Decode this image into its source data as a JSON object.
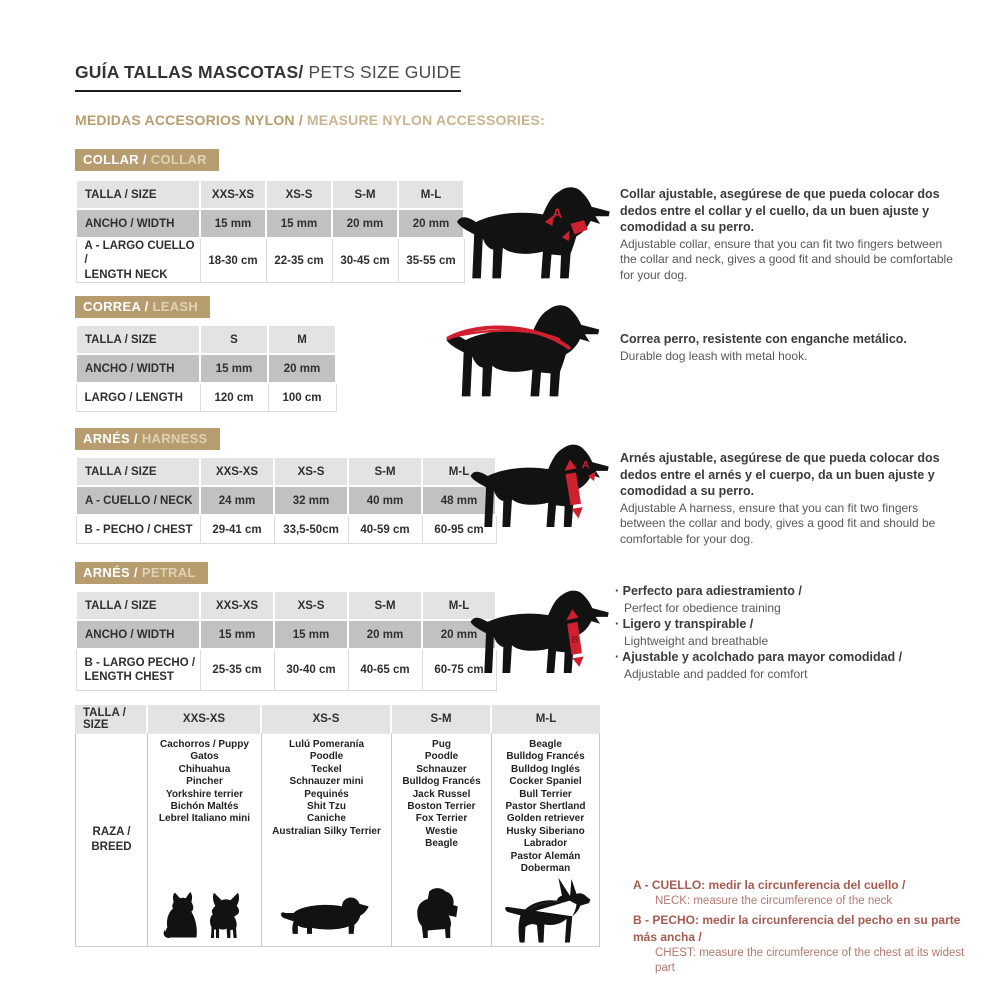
{
  "page": {
    "title_bold": "GUÍA TALLAS MASCOTAS/",
    "title_light": "PETS SIZE GUIDE",
    "subtitle_bold": "MEDIDAS ACCESORIOS NYLON /",
    "subtitle_light": "MEASURE NYLON ACCESSORIES:"
  },
  "collar": {
    "badge_bold": "COLLAR /",
    "badge_light": "COLLAR",
    "header": [
      "TALLA / SIZE",
      "XXS-XS",
      "XS-S",
      "S-M",
      "M-L"
    ],
    "width_label": "ANCHO / WIDTH",
    "width_values": [
      "15 mm",
      "15 mm",
      "20 mm",
      "20 mm"
    ],
    "neck_label": "A - LARGO CUELLO /\nLENGTH NECK",
    "neck_values": [
      "18-30 cm",
      "22-35 cm",
      "30-45 cm",
      "35-55 cm"
    ],
    "marker": "A",
    "desc_es": "Collar ajustable, asegúrese de que pueda colocar dos dedos entre el collar y el cuello, da un buen ajuste y comodidad a su perro.",
    "desc_en": "Adjustable collar, ensure that you can fit two fingers between the collar and neck, gives a good fit and should be comfortable for your dog."
  },
  "leash": {
    "badge_bold": "CORREA /",
    "badge_light": "LEASH",
    "header": [
      "TALLA / SIZE",
      "S",
      "M"
    ],
    "width_label": "ANCHO / WIDTH",
    "width_values": [
      "15 mm",
      "20 mm"
    ],
    "length_label": "LARGO / LENGTH",
    "length_values": [
      "120 cm",
      "100 cm"
    ],
    "desc_es": "Correa perro, resistente con enganche metálico.",
    "desc_en": "Durable dog leash with metal hook."
  },
  "harness": {
    "badge_bold": "ARNÉS /",
    "badge_light": "HARNESS",
    "header": [
      "TALLA / SIZE",
      "XXS-XS",
      "XS-S",
      "S-M",
      "M-L"
    ],
    "neck_label": "A - CUELLO / NECK",
    "neck_values": [
      "24 mm",
      "32 mm",
      "40 mm",
      "48 mm"
    ],
    "chest_label": "B - PECHO / CHEST",
    "chest_values": [
      "29-41 cm",
      "33,5-50cm",
      "40-59 cm",
      "60-95 cm"
    ],
    "marker": "A",
    "desc_es": "Arnés ajustable, asegúrese de que pueda colocar dos dedos entre el arnés y el cuerpo, da un buen ajuste y comodidad a su perro.",
    "desc_en": "Adjustable A harness, ensure that you can fit two fingers between the collar and body, gives a good fit and should be comfortable for your dog."
  },
  "petral": {
    "badge_bold": "ARNÉS /",
    "badge_light": "PETRAL",
    "header": [
      "TALLA / SIZE",
      "XXS-XS",
      "XS-S",
      "S-M",
      "M-L"
    ],
    "width_label": "ANCHO / WIDTH",
    "width_values": [
      "15 mm",
      "15 mm",
      "20 mm",
      "20 mm"
    ],
    "chest_label": "B - LARGO PECHO /\nLENGTH CHEST",
    "chest_values": [
      "25-35 cm",
      "30-40 cm",
      "40-65 cm",
      "60-75 cm"
    ],
    "marker": "B",
    "bullets": [
      {
        "es": "Perfecto para adiestramiento /",
        "en": "Perfect for obedience training"
      },
      {
        "es": "Ligero y transpirable /",
        "en": "Lightweight and breathable"
      },
      {
        "es": "Ajustable y acolchado para mayor comodidad /",
        "en": "Adjustable and padded for comfort"
      }
    ]
  },
  "breeds": {
    "header": [
      "TALLA /  SIZE",
      "XXS-XS",
      "XS-S",
      "S-M",
      "M-L"
    ],
    "row_label": "RAZA /\nBREED",
    "lists": {
      "xxs_xs": [
        "Cachorros / Puppy",
        "Gatos",
        "Chihuahua",
        "Pincher",
        "Yorkshire terrier",
        "Bichón Maltés",
        "Lebrel Italiano mini"
      ],
      "xs_s": [
        "Lulú Pomeranía",
        "Poodle",
        "Teckel",
        "Schnauzer mini",
        "Pequinés",
        "Shit Tzu",
        "Caniche",
        "Australian Silky Terrier"
      ],
      "s_m": [
        "Pug",
        "Poodle",
        "Schnauzer",
        "Bulldog Francés",
        "Jack Russel",
        "Boston Terrier",
        "Fox Terrier",
        "Westie",
        "Beagle"
      ],
      "m_l": [
        "Beagle",
        "Bulldog Francés",
        "Bulldog Inglés",
        "Cocker Spaniel",
        "Bull Terrier",
        "Pastor Shertland",
        "Golden retriever",
        "Husky Siberiano",
        "Labrador",
        "Pastor Alemán",
        "Doberman"
      ]
    }
  },
  "notes": [
    {
      "es": "A - CUELLO: medir la circunferencia del cuello /",
      "en": "NECK: measure the circumference of the neck"
    },
    {
      "es": "B - PECHO: medir la circunferencia del pecho en su parte más ancha /",
      "en": "CHEST: measure the circumference of the chest at its widest part"
    }
  ],
  "colors": {
    "tan_accent": "#b69c6e",
    "red_accent": "#cf2030",
    "note_red": "#a65b51",
    "row_light": "#e3e3e3",
    "row_mid": "#c1c1c1"
  },
  "icons": {
    "sections": [
      "dog-collar-icon",
      "dog-leash-icon",
      "dog-harness-icon",
      "dog-petral-icon"
    ],
    "breed_silhouettes": [
      "cat-icon",
      "chihuahua-icon",
      "dachshund-icon",
      "schnauzer-icon",
      "doberman-icon"
    ]
  }
}
